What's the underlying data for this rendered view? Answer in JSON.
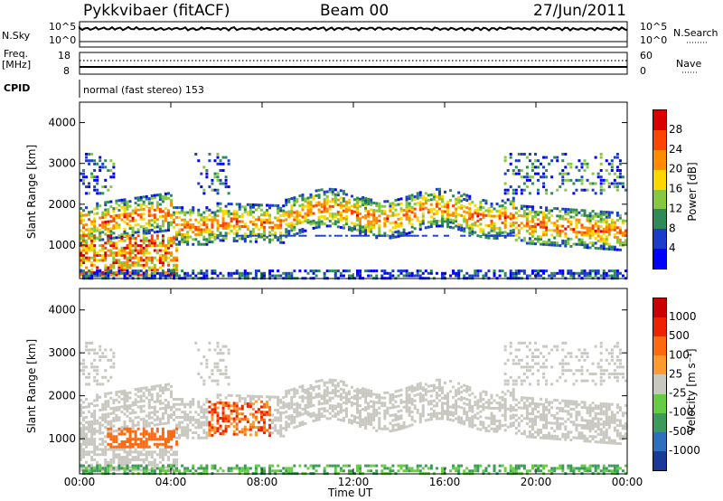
{
  "header": {
    "station": "Pykkvibaer (fitACF)",
    "beam": "Beam 00",
    "date": "27/Jun/2011"
  },
  "top_panels": {
    "nsky_label": "N.Sky",
    "nsky_ticks": [
      "10^5",
      "10^0"
    ],
    "nsearch_label": "N.Search",
    "nsearch_ticks": [
      "10^5",
      "10^0"
    ],
    "freq_label": "Freq.",
    "freq_unit": "[MHz]",
    "freq_ticks": [
      "18",
      "8"
    ],
    "nave_label": "Nave",
    "nave_ticks": [
      "60",
      "0"
    ],
    "cpid_label": "CPID",
    "cpid_text": "normal (fast stereo) 153"
  },
  "chart_data": [
    {
      "type": "heatmap",
      "title": "",
      "ylabel": "Slant Range [km]",
      "ylim": [
        180,
        4500
      ],
      "yticks": [
        "4000",
        "3000",
        "2000",
        "1000"
      ],
      "colorbar_label": "Power [dB]",
      "colorbar_ticks": [
        "28",
        "24",
        "20",
        "16",
        "12",
        "8",
        "4"
      ],
      "colorbar_colors": [
        "#0000ff",
        "#1c3ccc",
        "#2e8b57",
        "#88c840",
        "#ffd700",
        "#ff8c00",
        "#ff4400",
        "#dd0000"
      ]
    },
    {
      "type": "heatmap",
      "title": "",
      "xlabel": "Time UT",
      "ylabel": "Slant Range [km]",
      "ylim": [
        180,
        4500
      ],
      "xticks": [
        "00:00",
        "04:00",
        "08:00",
        "12:00",
        "16:00",
        "20:00",
        "00:00"
      ],
      "yticks": [
        "4000",
        "3000",
        "2000",
        "1000"
      ],
      "colorbar_label": "Velocity [m s⁻¹]",
      "colorbar_ticks": [
        "1000",
        "500",
        "100",
        "25",
        "-25",
        "-100",
        "-500",
        "-1000"
      ],
      "colorbar_colors": [
        "#1a3a99",
        "#2e6fbf",
        "#3c9a5a",
        "#66cc44",
        "#c8c8c0",
        "#ff9a30",
        "#ff6a10",
        "#ee2200",
        "#cc0000"
      ]
    }
  ]
}
